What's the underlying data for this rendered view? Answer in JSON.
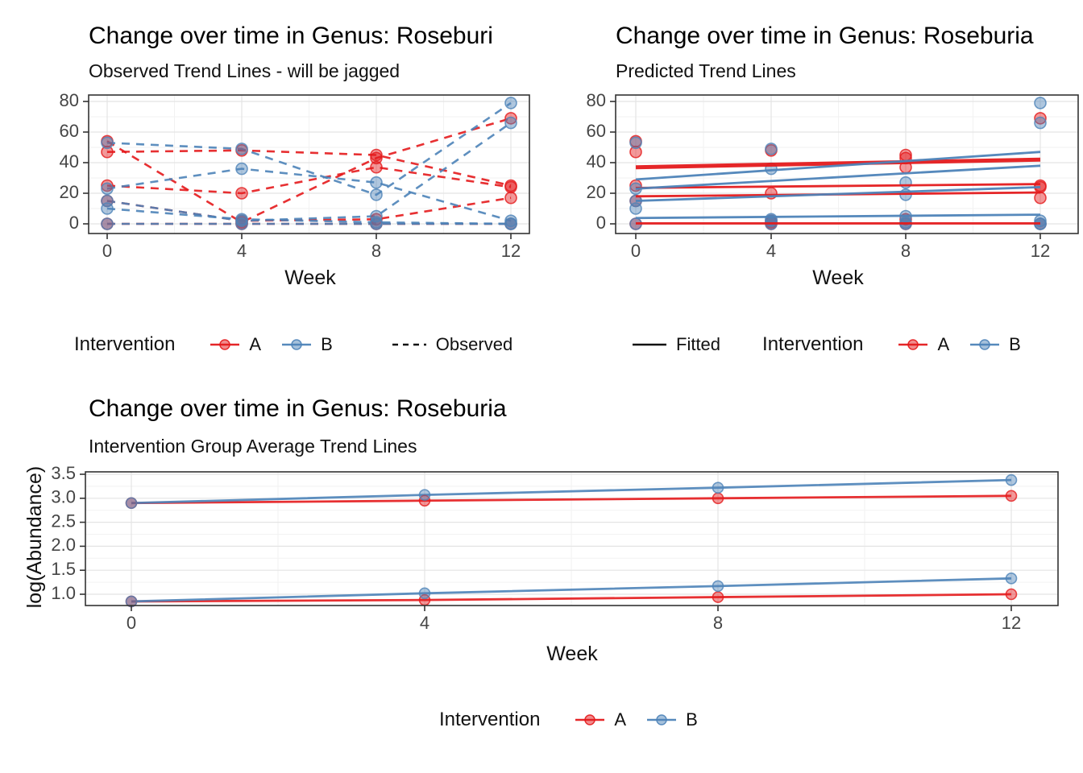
{
  "palette": {
    "intervention_a": "#E41A1C",
    "intervention_b": "#4D83B8",
    "linetype_key_color": "#111111",
    "axis_text": "#454545",
    "grid_major": "#E4E4E4",
    "grid_minor": "#F2F2F2",
    "panel_border": "#333333"
  },
  "chart_data": [
    {
      "id": "observed",
      "type": "line",
      "title": "Change over time in Genus: Roseburi",
      "subtitle": "Observed Trend Lines - will be jagged",
      "xlabel": "Week",
      "ylabel": "",
      "x": [
        0,
        4,
        8,
        12
      ],
      "x_tick_labels": [
        "0",
        "4",
        "8",
        "12"
      ],
      "y_ticks": [
        0,
        20,
        40,
        60,
        80
      ],
      "y_tick_labels": [
        "0",
        "20",
        "40",
        "60",
        "80"
      ],
      "ylim": [
        -4,
        84
      ],
      "grid": "on",
      "line_style": "dashed",
      "legend_position": "bottom",
      "series": [
        {
          "name": "A-subject-1",
          "group": "A",
          "values": [
            54,
            1,
            43,
            69
          ]
        },
        {
          "name": "A-subject-2",
          "group": "A",
          "values": [
            47,
            48,
            45,
            25
          ]
        },
        {
          "name": "A-subject-3",
          "group": "A",
          "values": [
            25,
            20,
            37,
            24
          ]
        },
        {
          "name": "A-subject-4",
          "group": "A",
          "values": [
            15,
            2,
            3,
            17
          ]
        },
        {
          "name": "A-subject-5",
          "group": "A",
          "values": [
            0,
            0,
            0,
            0
          ]
        },
        {
          "name": "B-subject-1",
          "group": "B",
          "values": [
            53,
            49,
            19,
            79
          ]
        },
        {
          "name": "B-subject-2",
          "group": "B",
          "values": [
            23,
            36,
            27,
            2
          ]
        },
        {
          "name": "B-subject-3",
          "group": "B",
          "values": [
            15,
            2,
            5,
            66
          ]
        },
        {
          "name": "B-subject-4",
          "group": "B",
          "values": [
            10,
            3,
            1,
            0
          ]
        },
        {
          "name": "B-subject-5",
          "group": "B",
          "values": [
            0,
            0,
            0,
            0
          ]
        }
      ]
    },
    {
      "id": "predicted",
      "type": "scatter",
      "title": "Change over time in Genus: Roseburia",
      "subtitle": "Predicted Trend Lines",
      "xlabel": "Week",
      "ylabel": "",
      "x": [
        0,
        4,
        8,
        12
      ],
      "x_tick_labels": [
        "0",
        "4",
        "8",
        "12"
      ],
      "y_ticks": [
        0,
        20,
        40,
        60,
        80
      ],
      "y_tick_labels": [
        "0",
        "20",
        "40",
        "60",
        "80"
      ],
      "ylim": [
        -4,
        84
      ],
      "grid": "on",
      "legend_position": "bottom",
      "points": [
        {
          "name": "A-subject-1",
          "group": "A",
          "values": [
            54,
            1,
            43,
            69
          ]
        },
        {
          "name": "A-subject-2",
          "group": "A",
          "values": [
            47,
            48,
            45,
            25
          ]
        },
        {
          "name": "A-subject-3",
          "group": "A",
          "values": [
            25,
            20,
            37,
            24
          ]
        },
        {
          "name": "A-subject-4",
          "group": "A",
          "values": [
            15,
            2,
            3,
            17
          ]
        },
        {
          "name": "A-subject-5",
          "group": "A",
          "values": [
            0,
            0,
            0,
            0
          ]
        },
        {
          "name": "B-subject-1",
          "group": "B",
          "values": [
            53,
            49,
            19,
            79
          ]
        },
        {
          "name": "B-subject-2",
          "group": "B",
          "values": [
            23,
            36,
            27,
            2
          ]
        },
        {
          "name": "B-subject-3",
          "group": "B",
          "values": [
            15,
            2,
            5,
            66
          ]
        },
        {
          "name": "B-subject-4",
          "group": "B",
          "values": [
            10,
            3,
            1,
            0
          ]
        },
        {
          "name": "B-subject-5",
          "group": "B",
          "values": [
            0,
            0,
            0,
            0
          ]
        }
      ],
      "fitted_lines": [
        {
          "group": "A",
          "start": 37,
          "end": 42,
          "width": "thick"
        },
        {
          "group": "A",
          "start": 23.5,
          "end": 26,
          "width": "normal"
        },
        {
          "group": "A",
          "start": 18,
          "end": 20.5,
          "width": "normal"
        },
        {
          "group": "A",
          "start": 0.3,
          "end": 0.3,
          "width": "normal"
        },
        {
          "group": "B",
          "start": 29,
          "end": 47,
          "width": "normal"
        },
        {
          "group": "B",
          "start": 23,
          "end": 38,
          "width": "normal"
        },
        {
          "group": "B",
          "start": 15,
          "end": 24,
          "width": "normal"
        },
        {
          "group": "B",
          "start": 3.8,
          "end": 6,
          "width": "normal"
        }
      ]
    },
    {
      "id": "average",
      "type": "line",
      "title": "Change over time in Genus: Roseburia",
      "subtitle": "Intervention Group Average Trend Lines",
      "xlabel": "Week",
      "ylabel": "log(Abundance)",
      "x": [
        0,
        4,
        8,
        12
      ],
      "x_tick_labels": [
        "0",
        "4",
        "8",
        "12"
      ],
      "y_ticks": [
        1.0,
        1.5,
        2.0,
        2.5,
        3.0,
        3.5
      ],
      "y_tick_labels": [
        "1.0",
        "1.5",
        "2.0",
        "2.5",
        "3.0",
        "3.5"
      ],
      "ylim": [
        0.78,
        3.55
      ],
      "grid": "on",
      "line_style": "solid",
      "legend_position": "bottom",
      "series": [
        {
          "name": "A-upper-average",
          "group": "A",
          "values": [
            2.9,
            2.95,
            3.0,
            3.05
          ]
        },
        {
          "name": "B-upper-average",
          "group": "B",
          "values": [
            2.9,
            3.07,
            3.22,
            3.38
          ]
        },
        {
          "name": "A-lower-average",
          "group": "A",
          "values": [
            0.85,
            0.88,
            0.94,
            1.0
          ]
        },
        {
          "name": "B-lower-average",
          "group": "B",
          "values": [
            0.85,
            1.02,
            1.17,
            1.33
          ]
        }
      ]
    }
  ],
  "legends": {
    "observed_chart": {
      "title": "Intervention",
      "item_a": "A",
      "item_b": "B",
      "linetype_label": "Observed"
    },
    "predicted_chart": {
      "fitted_label": "Fitted",
      "title": "Intervention",
      "item_a": "A",
      "item_b": "B"
    },
    "average_chart": {
      "title": "Intervention",
      "item_a": "A",
      "item_b": "B"
    }
  }
}
